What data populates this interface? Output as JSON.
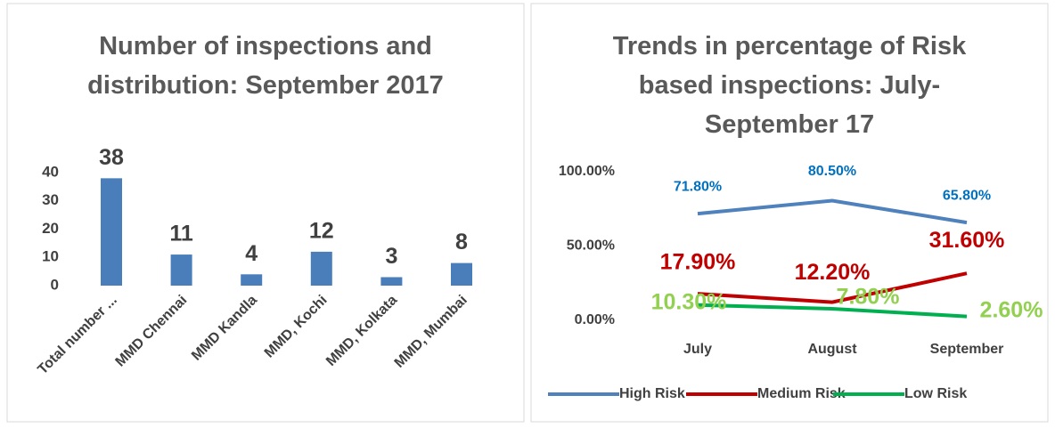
{
  "chart_data": [
    {
      "type": "bar",
      "title": "Number of inspections and distribution: September 2017",
      "categories": [
        "Total number ...",
        "MMD Chennai",
        "MMD Kandla",
        "MMD, Kochi",
        "MMD, Kolkata",
        "MMD, Mumbai"
      ],
      "values": [
        38,
        11,
        4,
        12,
        3,
        8
      ],
      "color": "#4a7ebb",
      "ylim": [
        0,
        40
      ],
      "yticks": [
        0,
        10,
        20,
        30,
        40
      ],
      "grid": false
    },
    {
      "type": "line",
      "title": "Trends in percentage of Risk based inspections: July- September 17",
      "categories": [
        "July",
        "August",
        "September"
      ],
      "series": [
        {
          "name": "High Risk",
          "color": "#4f81bd",
          "values": [
            71.8,
            80.5,
            65.8
          ],
          "value_labels": [
            "71.80%",
            "80.50%",
            "65.80%"
          ]
        },
        {
          "name": "Medium Risk",
          "color": "#c00000",
          "values": [
            17.9,
            12.2,
            31.6
          ],
          "value_labels": [
            "17.90%",
            "12.20%",
            "31.60%"
          ]
        },
        {
          "name": "Low Risk",
          "color": "#00b050",
          "values": [
            10.3,
            7.8,
            2.6
          ],
          "value_labels": [
            "10.30%",
            "7.80%",
            "2.60%"
          ]
        }
      ],
      "ylim": [
        0,
        100
      ],
      "yticks": [
        {
          "value": 0,
          "label": "0.00%"
        },
        {
          "value": 50,
          "label": "50.00%"
        },
        {
          "value": 100,
          "label": "100.00%"
        }
      ],
      "grid": false,
      "legend": "bottom"
    }
  ]
}
